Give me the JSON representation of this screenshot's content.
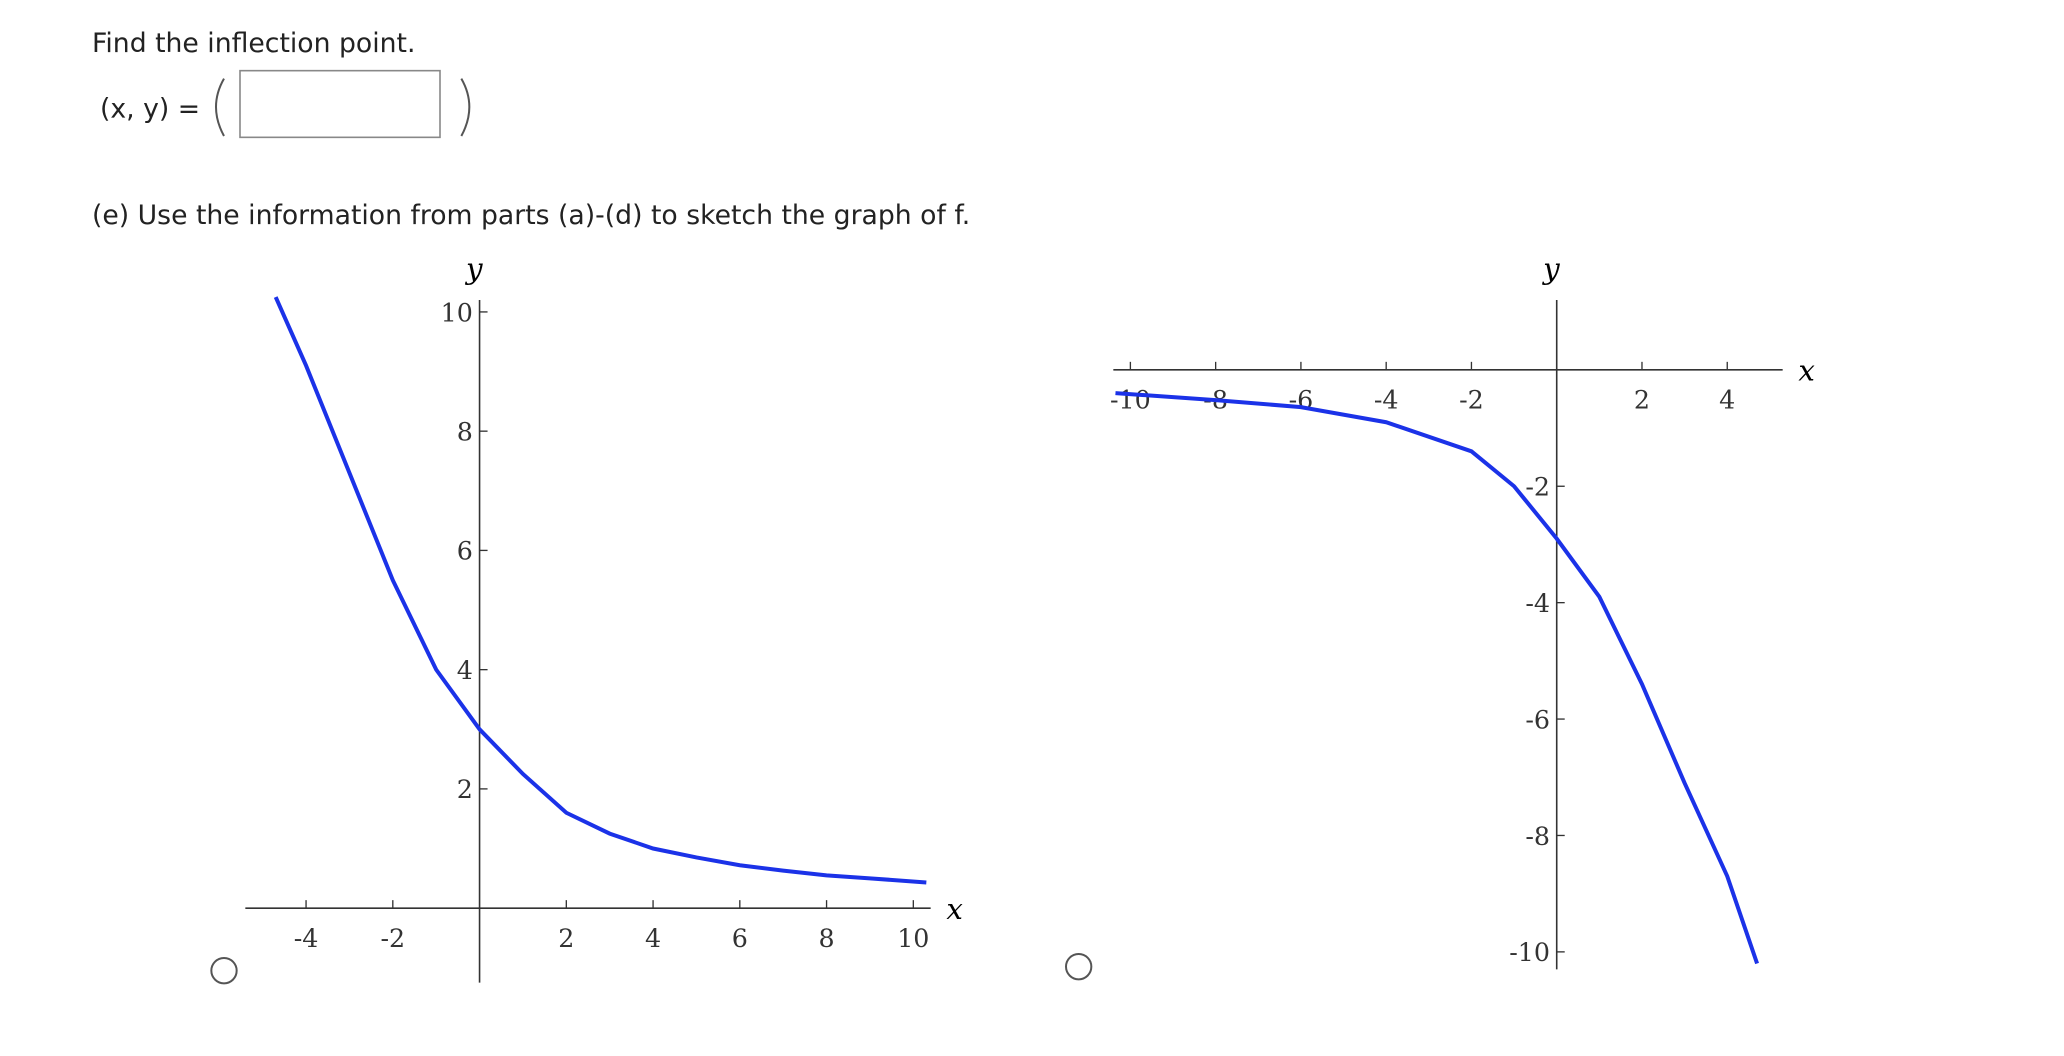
{
  "question": "Find the inflection point.",
  "answer_label": "(x, y) =",
  "part_e": "(e) Use the information from parts (a)-(d) to sketch the graph of f.",
  "chart_data": [
    {
      "type": "line",
      "x_label": "x",
      "y_label": "y",
      "xlim": [
        -5.4,
        10.4
      ],
      "ylim": [
        -1.25,
        10.2
      ],
      "xticks": [
        -4,
        -2,
        2,
        4,
        6,
        8,
        10
      ],
      "yticks": [
        2,
        4,
        6,
        8,
        10
      ],
      "series": [
        {
          "color": "#1b32e8",
          "x": [
            -4.7,
            -4,
            -3,
            -2,
            -1,
            0,
            1,
            2,
            3,
            4,
            5,
            6,
            7,
            8,
            9,
            10.3
          ],
          "values": [
            10.25,
            9.1,
            7.3,
            5.5,
            4.0,
            3.0,
            2.25,
            1.6,
            1.25,
            1.0,
            0.85,
            0.72,
            0.63,
            0.55,
            0.5,
            0.43
          ]
        }
      ]
    },
    {
      "type": "line",
      "x_label": "x",
      "y_label": "y",
      "xlim": [
        -10.4,
        5.3
      ],
      "ylim": [
        -10.3,
        1.2
      ],
      "xticks": [
        -10,
        -8,
        -6,
        -4,
        -2,
        2,
        4
      ],
      "yticks": [
        -2,
        -4,
        -6,
        -8,
        -10
      ],
      "series": [
        {
          "color": "#1b32e8",
          "x": [
            -10.35,
            -8,
            -6,
            -4,
            -2,
            -1,
            0,
            1,
            2,
            3,
            4,
            4.7
          ],
          "values": [
            -0.4,
            -0.52,
            -0.64,
            -0.9,
            -1.4,
            -2.0,
            -2.9,
            -3.9,
            -5.4,
            -7.1,
            -8.7,
            -10.2
          ]
        }
      ]
    }
  ]
}
